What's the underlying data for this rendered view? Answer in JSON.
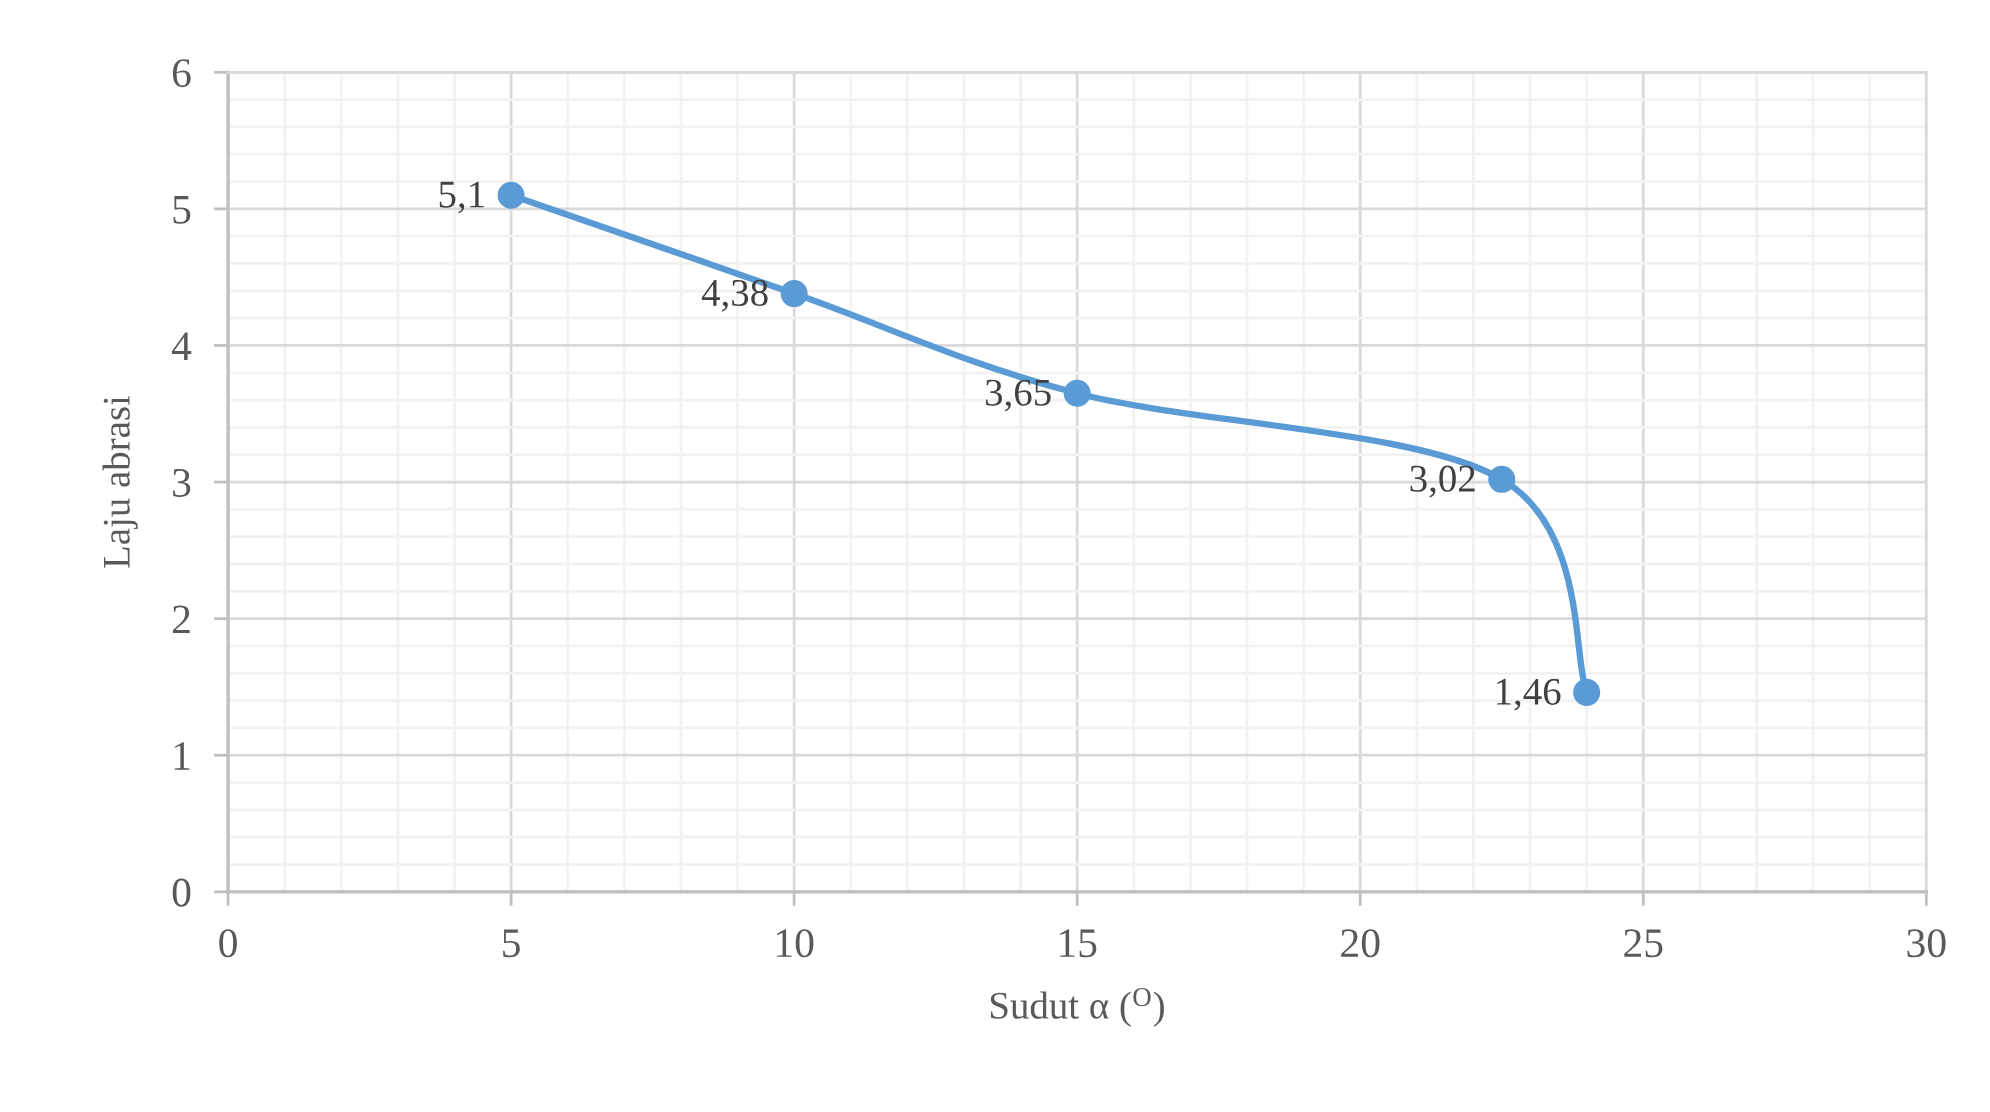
{
  "chart_data": {
    "type": "line",
    "xlabel": "Sudut α ($^{O}$)",
    "ylabel": "Laju abrasi",
    "x": [
      5,
      10,
      15,
      22.5,
      24
    ],
    "values": [
      5.1,
      4.38,
      3.65,
      3.02,
      1.46
    ],
    "color": "#5b9bd5",
    "value_labels": [
      "5,1",
      "4,38",
      "3,65",
      "3,02",
      "1,46"
    ],
    "xlim": [
      0,
      30
    ],
    "xticks": [
      0,
      5,
      10,
      15,
      20,
      25,
      30
    ],
    "ylim": [
      0,
      6
    ],
    "yticks": [
      0,
      1,
      2,
      3,
      4,
      5,
      6
    ],
    "grid": true,
    "marker": "circle"
  }
}
